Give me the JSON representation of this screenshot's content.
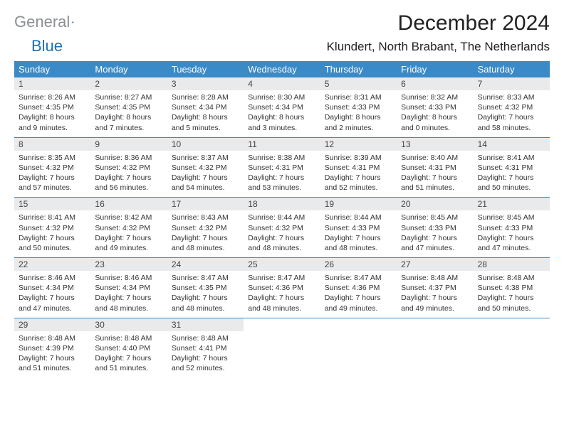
{
  "logo": {
    "text_gray": "General",
    "text_blue": "Blue",
    "icon_color": "#1f6fb2"
  },
  "header": {
    "month_title": "December 2024",
    "location": "Klundert, North Brabant, The Netherlands"
  },
  "calendar": {
    "header_bg": "#3a8ac7",
    "header_text_color": "#ffffff",
    "daynum_bg": "#e9eaeb",
    "rule_color": "#3a8ac7",
    "day_headers": [
      "Sunday",
      "Monday",
      "Tuesday",
      "Wednesday",
      "Thursday",
      "Friday",
      "Saturday"
    ],
    "weeks": [
      [
        {
          "day": "1",
          "sunrise": "8:26 AM",
          "sunset": "4:35 PM",
          "daylight": "8 hours and 9 minutes."
        },
        {
          "day": "2",
          "sunrise": "8:27 AM",
          "sunset": "4:35 PM",
          "daylight": "8 hours and 7 minutes."
        },
        {
          "day": "3",
          "sunrise": "8:28 AM",
          "sunset": "4:34 PM",
          "daylight": "8 hours and 5 minutes."
        },
        {
          "day": "4",
          "sunrise": "8:30 AM",
          "sunset": "4:34 PM",
          "daylight": "8 hours and 3 minutes."
        },
        {
          "day": "5",
          "sunrise": "8:31 AM",
          "sunset": "4:33 PM",
          "daylight": "8 hours and 2 minutes."
        },
        {
          "day": "6",
          "sunrise": "8:32 AM",
          "sunset": "4:33 PM",
          "daylight": "8 hours and 0 minutes."
        },
        {
          "day": "7",
          "sunrise": "8:33 AM",
          "sunset": "4:32 PM",
          "daylight": "7 hours and 58 minutes."
        }
      ],
      [
        {
          "day": "8",
          "sunrise": "8:35 AM",
          "sunset": "4:32 PM",
          "daylight": "7 hours and 57 minutes."
        },
        {
          "day": "9",
          "sunrise": "8:36 AM",
          "sunset": "4:32 PM",
          "daylight": "7 hours and 56 minutes."
        },
        {
          "day": "10",
          "sunrise": "8:37 AM",
          "sunset": "4:32 PM",
          "daylight": "7 hours and 54 minutes."
        },
        {
          "day": "11",
          "sunrise": "8:38 AM",
          "sunset": "4:31 PM",
          "daylight": "7 hours and 53 minutes."
        },
        {
          "day": "12",
          "sunrise": "8:39 AM",
          "sunset": "4:31 PM",
          "daylight": "7 hours and 52 minutes."
        },
        {
          "day": "13",
          "sunrise": "8:40 AM",
          "sunset": "4:31 PM",
          "daylight": "7 hours and 51 minutes."
        },
        {
          "day": "14",
          "sunrise": "8:41 AM",
          "sunset": "4:31 PM",
          "daylight": "7 hours and 50 minutes."
        }
      ],
      [
        {
          "day": "15",
          "sunrise": "8:41 AM",
          "sunset": "4:32 PM",
          "daylight": "7 hours and 50 minutes."
        },
        {
          "day": "16",
          "sunrise": "8:42 AM",
          "sunset": "4:32 PM",
          "daylight": "7 hours and 49 minutes."
        },
        {
          "day": "17",
          "sunrise": "8:43 AM",
          "sunset": "4:32 PM",
          "daylight": "7 hours and 48 minutes."
        },
        {
          "day": "18",
          "sunrise": "8:44 AM",
          "sunset": "4:32 PM",
          "daylight": "7 hours and 48 minutes."
        },
        {
          "day": "19",
          "sunrise": "8:44 AM",
          "sunset": "4:33 PM",
          "daylight": "7 hours and 48 minutes."
        },
        {
          "day": "20",
          "sunrise": "8:45 AM",
          "sunset": "4:33 PM",
          "daylight": "7 hours and 47 minutes."
        },
        {
          "day": "21",
          "sunrise": "8:45 AM",
          "sunset": "4:33 PM",
          "daylight": "7 hours and 47 minutes."
        }
      ],
      [
        {
          "day": "22",
          "sunrise": "8:46 AM",
          "sunset": "4:34 PM",
          "daylight": "7 hours and 47 minutes."
        },
        {
          "day": "23",
          "sunrise": "8:46 AM",
          "sunset": "4:34 PM",
          "daylight": "7 hours and 48 minutes."
        },
        {
          "day": "24",
          "sunrise": "8:47 AM",
          "sunset": "4:35 PM",
          "daylight": "7 hours and 48 minutes."
        },
        {
          "day": "25",
          "sunrise": "8:47 AM",
          "sunset": "4:36 PM",
          "daylight": "7 hours and 48 minutes."
        },
        {
          "day": "26",
          "sunrise": "8:47 AM",
          "sunset": "4:36 PM",
          "daylight": "7 hours and 49 minutes."
        },
        {
          "day": "27",
          "sunrise": "8:48 AM",
          "sunset": "4:37 PM",
          "daylight": "7 hours and 49 minutes."
        },
        {
          "day": "28",
          "sunrise": "8:48 AM",
          "sunset": "4:38 PM",
          "daylight": "7 hours and 50 minutes."
        }
      ],
      [
        {
          "day": "29",
          "sunrise": "8:48 AM",
          "sunset": "4:39 PM",
          "daylight": "7 hours and 51 minutes."
        },
        {
          "day": "30",
          "sunrise": "8:48 AM",
          "sunset": "4:40 PM",
          "daylight": "7 hours and 51 minutes."
        },
        {
          "day": "31",
          "sunrise": "8:48 AM",
          "sunset": "4:41 PM",
          "daylight": "7 hours and 52 minutes."
        },
        null,
        null,
        null,
        null
      ]
    ],
    "labels": {
      "sunrise_prefix": "Sunrise: ",
      "sunset_prefix": "Sunset: ",
      "daylight_prefix": "Daylight: "
    }
  }
}
